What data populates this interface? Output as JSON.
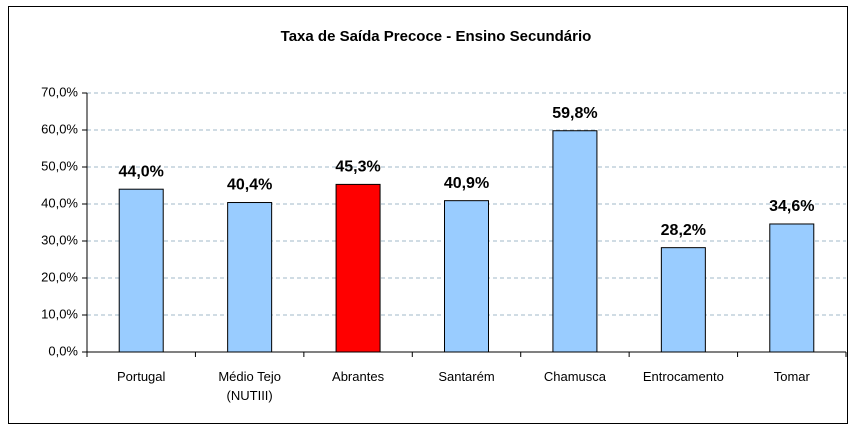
{
  "chart_data": {
    "type": "bar",
    "title": "Taxa de Saída Precoce - Ensino Secundário",
    "categories": [
      "Portugal",
      "Médio Tejo (NUTIII)",
      "Abrantes",
      "Santarém",
      "Chamusca",
      "Entrocamento",
      "Tomar"
    ],
    "values": [
      44.0,
      40.4,
      45.3,
      40.9,
      59.8,
      28.2,
      34.6
    ],
    "value_labels": [
      "44,0%",
      "40,4%",
      "45,3%",
      "40,9%",
      "59,8%",
      "28,2%",
      "34,6%"
    ],
    "colors": [
      "#99ccff",
      "#99ccff",
      "#ff0000",
      "#99ccff",
      "#99ccff",
      "#99ccff",
      "#99ccff"
    ],
    "ylim": [
      0,
      70
    ],
    "yticks": [
      {
        "value": 0,
        "label": "0,0%"
      },
      {
        "value": 10,
        "label": "10,0%"
      },
      {
        "value": 20,
        "label": "20,0%"
      },
      {
        "value": 30,
        "label": "30,0%"
      },
      {
        "value": 40,
        "label": "40,0%"
      },
      {
        "value": 50,
        "label": "50,0%"
      },
      {
        "value": 60,
        "label": "60,0%"
      },
      {
        "value": 70,
        "label": "70,0%"
      }
    ],
    "grid": true
  }
}
